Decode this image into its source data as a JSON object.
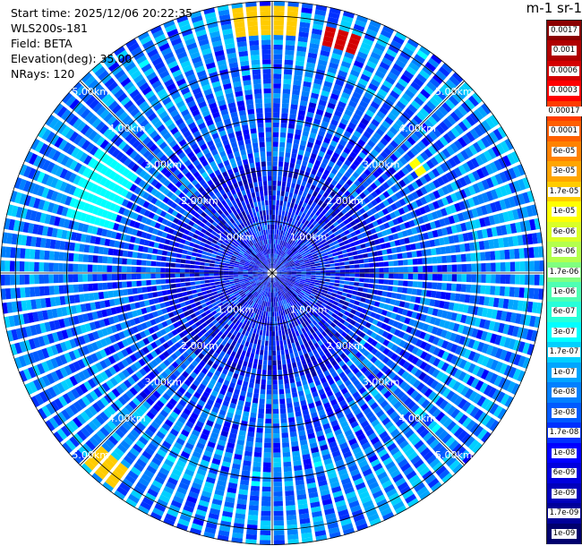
{
  "info": {
    "start_time": "Start time: 2025/12/06 20:22:35",
    "instrument": "WLS200s-181",
    "field": "Field: BETA",
    "elevation": "Elevation(deg): 35.00",
    "nrays": "NRays: 120"
  },
  "colorbar": {
    "title": "m-1 sr-1",
    "labels": [
      "0.0017",
      "0.001",
      "0.0006",
      "0.0003",
      "0.00017",
      "0.0001",
      "6e-05",
      "3e-05",
      "1.7e-05",
      "1e-05",
      "6e-06",
      "3e-06",
      "1.7e-06",
      "1e-06",
      "6e-07",
      "3e-07",
      "1.7e-07",
      "1e-07",
      "6e-08",
      "3e-08",
      "1.7e-08",
      "1e-08",
      "6e-09",
      "3e-09",
      "1.7e-09",
      "1e-09"
    ],
    "colors": [
      "#8b0000",
      "#b00000",
      "#d40000",
      "#ff0000",
      "#ff3c00",
      "#ff5f00",
      "#ff8200",
      "#ffa500",
      "#ffcc00",
      "#ffff00",
      "#d9ff26",
      "#b3ff4d",
      "#80ff80",
      "#4dffb3",
      "#26ffd9",
      "#00ffff",
      "#00d0ff",
      "#00a5ff",
      "#0080ff",
      "#005aff",
      "#0030ff",
      "#0000ff",
      "#0000dd",
      "#0000bb",
      "#000099",
      "#00006e"
    ]
  },
  "chart_data": {
    "type": "heatmap",
    "projection": "polar (PPI scan)",
    "field": "BETA",
    "elevation_deg": 35.0,
    "n_rays": 120,
    "range_rings_km": [
      1,
      2,
      3,
      4,
      5
    ],
    "ring_labels": [
      "1.00km",
      "2.00km",
      "3.00km",
      "4.00km",
      "5.00km"
    ],
    "max_range_km": 5.3,
    "colorbar_scale": "log",
    "value_range": [
      1e-09,
      0.0017
    ],
    "typical_value": 3e-08,
    "high_value_regions": [
      {
        "azimuth_deg": [
          352,
          6
        ],
        "range_km": [
          4.6,
          5.2
        ],
        "value": 1.7e-05
      },
      {
        "azimuth_deg": [
          12,
          20
        ],
        "range_km": [
          4.5,
          4.9
        ],
        "value": 0.0006
      },
      {
        "azimuth_deg": [
          215,
          225
        ],
        "range_km": [
          4.7,
          5.2
        ],
        "value": 1.7e-05
      },
      {
        "azimuth_deg": [
          52,
          56
        ],
        "range_km": [
          3.4,
          3.6
        ],
        "value": 1e-05
      },
      {
        "azimuth_deg": [
          285,
          305
        ],
        "range_km": [
          3.2,
          4.2
        ],
        "value": 3e-07
      }
    ]
  }
}
